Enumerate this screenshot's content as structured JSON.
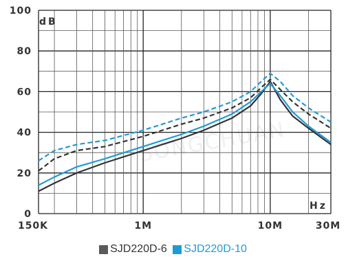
{
  "chart_data": {
    "type": "line",
    "x_scale": "log",
    "xlim": [
      150000,
      30000000
    ],
    "ylim": [
      0,
      100
    ],
    "grid": true,
    "legend_position": "bottom-center",
    "y_unit": "dB",
    "x_unit": "Hz",
    "y_ticks": [
      {
        "value": 0,
        "label": "0"
      },
      {
        "value": 20,
        "label": "20"
      },
      {
        "value": 40,
        "label": "40"
      },
      {
        "value": 60,
        "label": "60"
      },
      {
        "value": 80,
        "label": "80"
      },
      {
        "value": 100,
        "label": "100"
      }
    ],
    "x_ticks": [
      {
        "value": 150000,
        "label": "150K"
      },
      {
        "value": 1000000,
        "label": "1M"
      },
      {
        "value": 10000000,
        "label": "10M"
      },
      {
        "value": 30000000,
        "label": "30M"
      }
    ],
    "watermark": "SONGCHUAN",
    "series": [
      {
        "name": "SJD220D-6",
        "color": "#333333",
        "style": "solid",
        "x": [
          150000,
          200000,
          300000,
          500000,
          1000000,
          2000000,
          3000000,
          5000000,
          7000000,
          8500000,
          10000000,
          12000000,
          15000000,
          20000000,
          30000000
        ],
        "y": [
          11,
          15,
          20,
          25,
          31,
          37,
          41,
          47,
          53,
          59,
          65,
          56,
          48,
          42,
          34
        ]
      },
      {
        "name": "SJD220D-6",
        "color": "#333333",
        "style": "dashed",
        "x": [
          150000,
          200000,
          300000,
          500000,
          1000000,
          2000000,
          3000000,
          5000000,
          7000000,
          8500000,
          10000000,
          12000000,
          15000000,
          20000000,
          30000000
        ],
        "y": [
          21,
          27,
          31,
          33,
          38,
          44,
          47,
          52,
          57,
          62,
          66,
          61,
          55,
          49,
          42
        ]
      },
      {
        "name": "SJD220D-10",
        "color": "#1e9bd7",
        "style": "solid",
        "x": [
          150000,
          200000,
          300000,
          500000,
          1000000,
          2000000,
          3000000,
          5000000,
          7000000,
          8500000,
          10000000,
          12000000,
          15000000,
          20000000,
          30000000
        ],
        "y": [
          14,
          18,
          23,
          27,
          33,
          39,
          43,
          49,
          55,
          60,
          64,
          58,
          50,
          43,
          35
        ]
      },
      {
        "name": "SJD220D-10",
        "color": "#1e9bd7",
        "style": "dashed",
        "x": [
          150000,
          200000,
          300000,
          500000,
          1000000,
          2000000,
          3000000,
          5000000,
          7000000,
          8500000,
          10000000,
          12000000,
          15000000,
          20000000,
          30000000
        ],
        "y": [
          26,
          31,
          34,
          36,
          41,
          47,
          50,
          55,
          60,
          65,
          69,
          65,
          58,
          52,
          45
        ]
      }
    ],
    "legend": [
      {
        "name": "SJD220D-6",
        "color": "#5a5a5a"
      },
      {
        "name": "SJD220D-10",
        "color": "#1e9bd7"
      }
    ]
  }
}
